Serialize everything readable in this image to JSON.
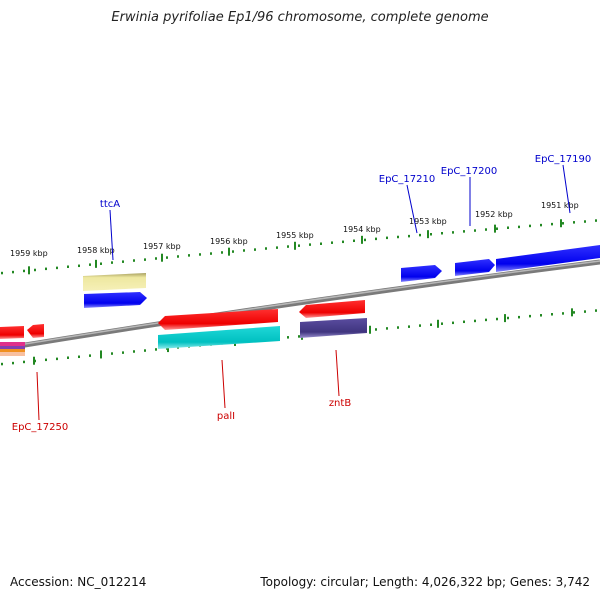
{
  "title": "Erwinia pyrifoliae Ep1/96 chromosome, complete genome",
  "footer": {
    "accession": "Accession: NC_012214",
    "topology": "Topology: circular; Length: 4,026,322 bp; Genes: 3,742"
  },
  "kbp_labels": [
    "1959 kbp",
    "1958 kbp",
    "1957 kbp",
    "1956 kbp",
    "1955 kbp",
    "1954 kbp",
    "1953 kbp",
    "1952 kbp",
    "1951 kbp"
  ],
  "gene_labels": {
    "top": [
      "ttcA",
      "EpC_17210",
      "EpC_17200",
      "EpC_17190"
    ],
    "bottom": [
      "EpC_17250",
      "palI",
      "zntB"
    ]
  },
  "colors": {
    "blue_label": "#0000cc",
    "red_label": "#cc0000",
    "tick": "#228822",
    "backbone": "#808080",
    "gene_blue": "#0000ee",
    "gene_red": "#ee0000",
    "gene_khaki": "#eee8a0",
    "gene_cyan": "#00c8c8",
    "gene_purple": "#4a3d8f"
  }
}
